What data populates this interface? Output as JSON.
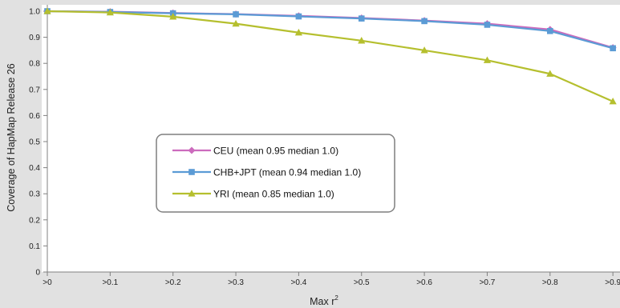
{
  "chart_data": {
    "type": "line",
    "title": "",
    "xlabel": "Max r",
    "xlabel_superscript": "2",
    "ylabel": "Coverage of HapMap Release 26",
    "categories": [
      ">0",
      ">0.1",
      ">0.2",
      ">0.3",
      ">0.4",
      ">0.5",
      ">0.6",
      ">0.7",
      ">0.8",
      ">0.9"
    ],
    "ylim": [
      0,
      1.0
    ],
    "yticks": [
      "0",
      "0.1",
      "0.2",
      "0.3",
      "0.4",
      "0.5",
      "0.6",
      "0.7",
      "0.8",
      "0.9",
      "1.0"
    ],
    "grid": false,
    "legend_position": "center-left",
    "series": [
      {
        "name": "CEU (mean 0.95 median 1.0)",
        "color": "#cc6bbd",
        "marker": "diamond",
        "values": [
          1.0,
          0.998,
          0.993,
          0.989,
          0.982,
          0.974,
          0.964,
          0.952,
          0.93,
          0.86
        ]
      },
      {
        "name": "CHB+JPT (mean 0.94 median 1.0)",
        "color": "#5b9bd5",
        "marker": "square",
        "values": [
          1.0,
          0.997,
          0.992,
          0.988,
          0.98,
          0.972,
          0.962,
          0.948,
          0.924,
          0.858
        ]
      },
      {
        "name": "YRI (mean 0.85 median 1.0)",
        "color": "#b5bf2e",
        "marker": "triangle",
        "values": [
          1.0,
          0.995,
          0.979,
          0.952,
          0.918,
          0.887,
          0.85,
          0.812,
          0.76,
          0.654
        ]
      }
    ]
  }
}
